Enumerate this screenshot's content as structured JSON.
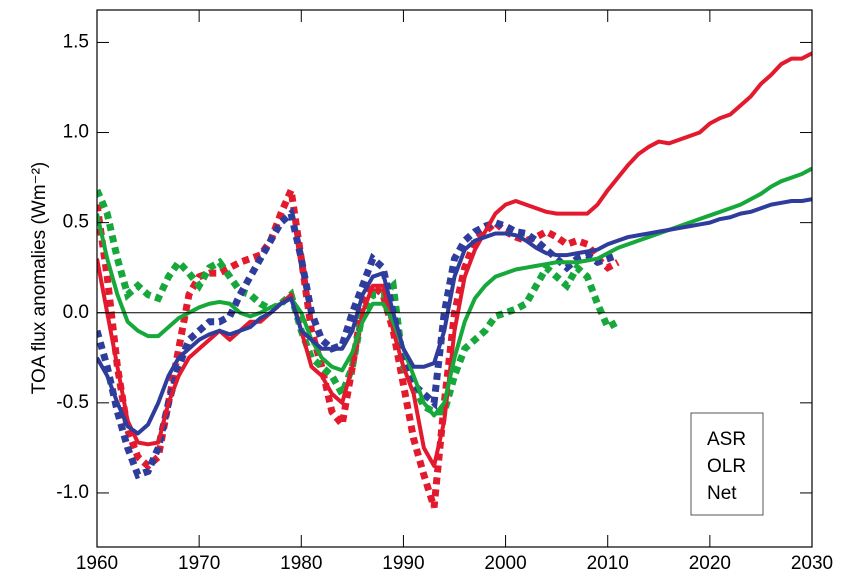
{
  "chart_data": {
    "type": "line",
    "ylabel": "TOA flux anomalies (Wm⁻²)",
    "x": [
      1960,
      1961,
      1962,
      1963,
      1964,
      1965,
      1966,
      1967,
      1968,
      1969,
      1970,
      1971,
      1972,
      1973,
      1974,
      1975,
      1976,
      1977,
      1978,
      1979,
      1980,
      1981,
      1982,
      1983,
      1984,
      1985,
      1986,
      1987,
      1988,
      1989,
      1990,
      1991,
      1992,
      1993,
      1994,
      1995,
      1996,
      1997,
      1998,
      1999,
      2000,
      2001,
      2002,
      2003,
      2004,
      2005,
      2006,
      2007,
      2008,
      2009,
      2010,
      2011,
      2012,
      2013,
      2014,
      2015,
      2016,
      2017,
      2018,
      2019,
      2020,
      2021,
      2022,
      2023,
      2024,
      2025,
      2026,
      2027,
      2028,
      2029,
      2030
    ],
    "series": [
      {
        "name": "ASR",
        "color": "#e31a2d",
        "values": [
          0.3,
          0.0,
          -0.3,
          -0.6,
          -0.72,
          -0.73,
          -0.72,
          -0.5,
          -0.35,
          -0.25,
          -0.2,
          -0.15,
          -0.1,
          -0.15,
          -0.1,
          -0.05,
          -0.05,
          0.0,
          0.05,
          0.1,
          -0.1,
          -0.3,
          -0.35,
          -0.45,
          -0.5,
          -0.3,
          0.0,
          0.15,
          0.15,
          -0.1,
          -0.3,
          -0.45,
          -0.75,
          -0.85,
          -0.6,
          -0.1,
          0.2,
          0.35,
          0.45,
          0.55,
          0.6,
          0.62,
          0.6,
          0.58,
          0.56,
          0.55,
          0.55,
          0.55,
          0.55,
          0.6,
          0.68,
          0.75,
          0.82,
          0.88,
          0.92,
          0.95,
          0.94,
          0.96,
          0.98,
          1.0,
          1.05,
          1.08,
          1.1,
          1.15,
          1.2,
          1.27,
          1.32,
          1.38,
          1.41,
          1.41,
          1.44
        ],
        "observed": [
          0.6,
          0.2,
          -0.3,
          -0.65,
          -0.8,
          -0.85,
          -0.8,
          -0.5,
          -0.2,
          0.1,
          0.2,
          0.22,
          0.22,
          0.25,
          0.28,
          0.3,
          0.32,
          0.4,
          0.55,
          0.68,
          0.3,
          -0.1,
          -0.3,
          -0.55,
          -0.62,
          -0.3,
          0.05,
          0.15,
          0.1,
          -0.1,
          -0.4,
          -0.7,
          -0.9,
          -1.08,
          -0.5,
          0.0,
          0.25,
          0.4,
          0.45,
          0.5,
          0.45,
          0.42,
          0.4,
          0.42,
          0.45,
          0.42,
          0.38,
          0.4,
          0.38,
          0.3,
          0.25,
          0.28,
          null,
          null,
          null,
          null,
          null,
          null,
          null,
          null,
          null,
          null,
          null,
          null,
          null,
          null,
          null,
          null,
          null,
          null,
          null
        ]
      },
      {
        "name": "OLR",
        "color": "#17a83c",
        "values": [
          0.55,
          0.3,
          0.1,
          -0.05,
          -0.1,
          -0.13,
          -0.13,
          -0.08,
          -0.03,
          0.0,
          0.03,
          0.05,
          0.06,
          0.05,
          0.0,
          -0.02,
          0.0,
          0.03,
          0.05,
          0.08,
          0.0,
          -0.15,
          -0.25,
          -0.3,
          -0.32,
          -0.22,
          -0.05,
          0.05,
          0.05,
          -0.05,
          -0.2,
          -0.35,
          -0.5,
          -0.57,
          -0.5,
          -0.25,
          -0.05,
          0.08,
          0.15,
          0.2,
          0.22,
          0.24,
          0.25,
          0.26,
          0.27,
          0.28,
          0.28,
          0.28,
          0.29,
          0.3,
          0.33,
          0.36,
          0.38,
          0.4,
          0.42,
          0.44,
          0.46,
          0.48,
          0.5,
          0.52,
          0.54,
          0.56,
          0.58,
          0.6,
          0.63,
          0.66,
          0.7,
          0.73,
          0.75,
          0.77,
          0.8
        ],
        "observed": [
          0.68,
          0.55,
          0.3,
          0.1,
          0.15,
          0.1,
          0.08,
          0.2,
          0.28,
          0.22,
          0.15,
          0.25,
          0.28,
          0.2,
          0.12,
          0.1,
          0.05,
          0.02,
          0.05,
          0.1,
          -0.1,
          -0.25,
          -0.3,
          -0.35,
          -0.45,
          -0.3,
          0.0,
          0.1,
          0.1,
          0.15,
          -0.3,
          -0.4,
          -0.52,
          -0.55,
          -0.55,
          -0.35,
          -0.2,
          -0.15,
          -0.1,
          -0.02,
          0.0,
          0.02,
          0.05,
          0.15,
          0.25,
          0.2,
          0.15,
          0.25,
          0.2,
          0.05,
          -0.08,
          -0.05,
          null,
          null,
          null,
          null,
          null,
          null,
          null,
          null,
          null,
          null,
          null,
          null,
          null,
          null,
          null,
          null,
          null,
          null,
          null
        ]
      },
      {
        "name": "Net",
        "color": "#2e3d9c",
        "values": [
          -0.25,
          -0.35,
          -0.5,
          -0.63,
          -0.67,
          -0.62,
          -0.5,
          -0.35,
          -0.25,
          -0.2,
          -0.15,
          -0.12,
          -0.1,
          -0.12,
          -0.1,
          -0.08,
          -0.03,
          0.0,
          0.05,
          0.08,
          -0.1,
          -0.15,
          -0.2,
          -0.2,
          -0.2,
          -0.1,
          0.1,
          0.2,
          0.22,
          0.0,
          -0.2,
          -0.3,
          -0.3,
          -0.28,
          -0.1,
          0.2,
          0.35,
          0.4,
          0.42,
          0.44,
          0.44,
          0.43,
          0.4,
          0.36,
          0.33,
          0.32,
          0.32,
          0.33,
          0.34,
          0.35,
          0.38,
          0.4,
          0.42,
          0.43,
          0.44,
          0.45,
          0.46,
          0.47,
          0.48,
          0.49,
          0.5,
          0.52,
          0.53,
          0.55,
          0.56,
          0.58,
          0.6,
          0.61,
          0.62,
          0.62,
          0.63
        ],
        "observed": [
          -0.1,
          -0.3,
          -0.55,
          -0.75,
          -0.9,
          -0.88,
          -0.75,
          -0.5,
          -0.3,
          -0.15,
          -0.1,
          -0.05,
          -0.05,
          -0.02,
          0.1,
          0.2,
          0.3,
          0.4,
          0.5,
          0.55,
          0.3,
          0.0,
          -0.15,
          -0.2,
          -0.18,
          0.0,
          0.15,
          0.3,
          0.25,
          0.0,
          -0.25,
          -0.4,
          -0.45,
          -0.5,
          0.0,
          0.3,
          0.4,
          0.45,
          0.48,
          0.5,
          0.48,
          0.45,
          0.44,
          0.4,
          0.35,
          0.3,
          0.25,
          0.3,
          0.32,
          0.28,
          0.3,
          0.32,
          null,
          null,
          null,
          null,
          null,
          null,
          null,
          null,
          null,
          null,
          null,
          null,
          null,
          null,
          null,
          null,
          null,
          null,
          null
        ]
      }
    ],
    "xlim": [
      1960,
      2030
    ],
    "xticks": [
      1960,
      1970,
      1980,
      1990,
      2000,
      2010,
      2020,
      2030
    ],
    "ylim": [
      -1.3,
      1.68
    ],
    "yticks": [
      {
        "value": -1,
        "label": "-1.0"
      },
      {
        "value": -0.5,
        "label": "-0.5"
      },
      {
        "value": 0,
        "label": "0.0"
      },
      {
        "value": 0.5,
        "label": "0.5"
      },
      {
        "value": 1,
        "label": "1.0"
      },
      {
        "value": 1.5,
        "label": "1.5"
      }
    ],
    "legend": "lower right"
  }
}
